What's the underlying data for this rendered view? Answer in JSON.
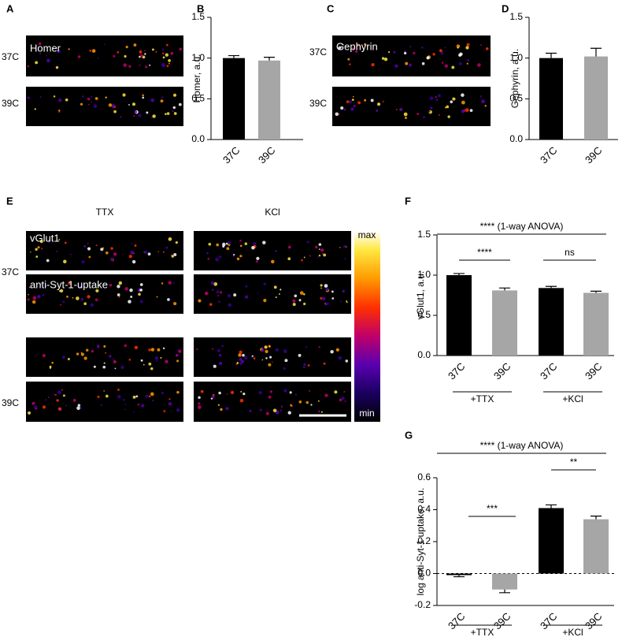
{
  "figure": {
    "panel_labels": [
      "A",
      "B",
      "C",
      "D",
      "E",
      "F",
      "G"
    ],
    "panel_a": {
      "stain": "Homer",
      "rows": [
        "37C",
        "39C"
      ]
    },
    "panel_c": {
      "stain": "Gephyrin",
      "rows": [
        "37C",
        "39C"
      ]
    },
    "panel_e": {
      "columns": [
        "TTX",
        "KCl"
      ],
      "stains": [
        "vGlut1",
        "anti-Syt-1-uptake"
      ],
      "rows": [
        "37C",
        "39C"
      ],
      "colorbar": [
        "max",
        "min"
      ]
    }
  },
  "chart_data": [
    {
      "type": "bar",
      "ylabel": "Homer, a.u.",
      "categories": [
        "37C",
        "39C"
      ],
      "values": [
        1.0,
        0.97
      ],
      "errors": [
        0.03,
        0.04
      ],
      "colors": [
        "#000000",
        "#a6a6a6"
      ],
      "ylim": [
        0,
        1.5
      ],
      "yticks": [
        {
          "value": 0,
          "label": "0.0"
        },
        0.5,
        {
          "value": 1,
          "label": "1.0"
        },
        1.5
      ]
    },
    {
      "type": "bar",
      "ylabel": "Gephyrin, a.u.",
      "categories": [
        "37C",
        "39C"
      ],
      "values": [
        1.0,
        1.02
      ],
      "errors": [
        0.06,
        0.1
      ],
      "colors": [
        "#000000",
        "#a6a6a6"
      ],
      "ylim": [
        0,
        1.5
      ],
      "yticks": [
        {
          "value": 0,
          "label": "0.0"
        },
        0.5,
        {
          "value": 1,
          "label": "1.0"
        },
        1.5
      ]
    },
    {
      "type": "bar",
      "ylabel": "vGlut1, a.u.",
      "categories": [
        "37C",
        "39C",
        "37C",
        "39C"
      ],
      "values": [
        1.0,
        0.81,
        0.84,
        0.78
      ],
      "errors": [
        0.02,
        0.03,
        0.02,
        0.02
      ],
      "colors": [
        "#000000",
        "#a6a6a6",
        "#000000",
        "#a6a6a6"
      ],
      "ylim": [
        0,
        1.5
      ],
      "yticks": [
        {
          "value": 0,
          "label": "0.0"
        },
        0.5,
        {
          "value": 1,
          "label": "1.0"
        },
        1.5
      ],
      "annotations": [
        "**** (1-way ANOVA)",
        "****",
        "ns"
      ],
      "groups": [
        "+TTX",
        "+KCl"
      ]
    },
    {
      "type": "bar",
      "ylabel": "log anti-Syt-1 uptake, a.u.",
      "categories": [
        "37C",
        "39C",
        "37C",
        "39C"
      ],
      "values": [
        -0.01,
        -0.1,
        0.41,
        0.34
      ],
      "errors": [
        0.01,
        0.02,
        0.02,
        0.02
      ],
      "colors": [
        "#000000",
        "#a6a6a6",
        "#000000",
        "#a6a6a6"
      ],
      "ylim": [
        -0.2,
        0.6
      ],
      "yticks": [
        -0.2,
        {
          "value": 0,
          "label": "0.0"
        },
        0.2,
        0.4,
        0.6
      ],
      "zero_line": true,
      "annotations": [
        "**** (1-way ANOVA)",
        "***",
        "**"
      ],
      "groups": [
        "+TTX",
        "+KCl"
      ]
    }
  ]
}
